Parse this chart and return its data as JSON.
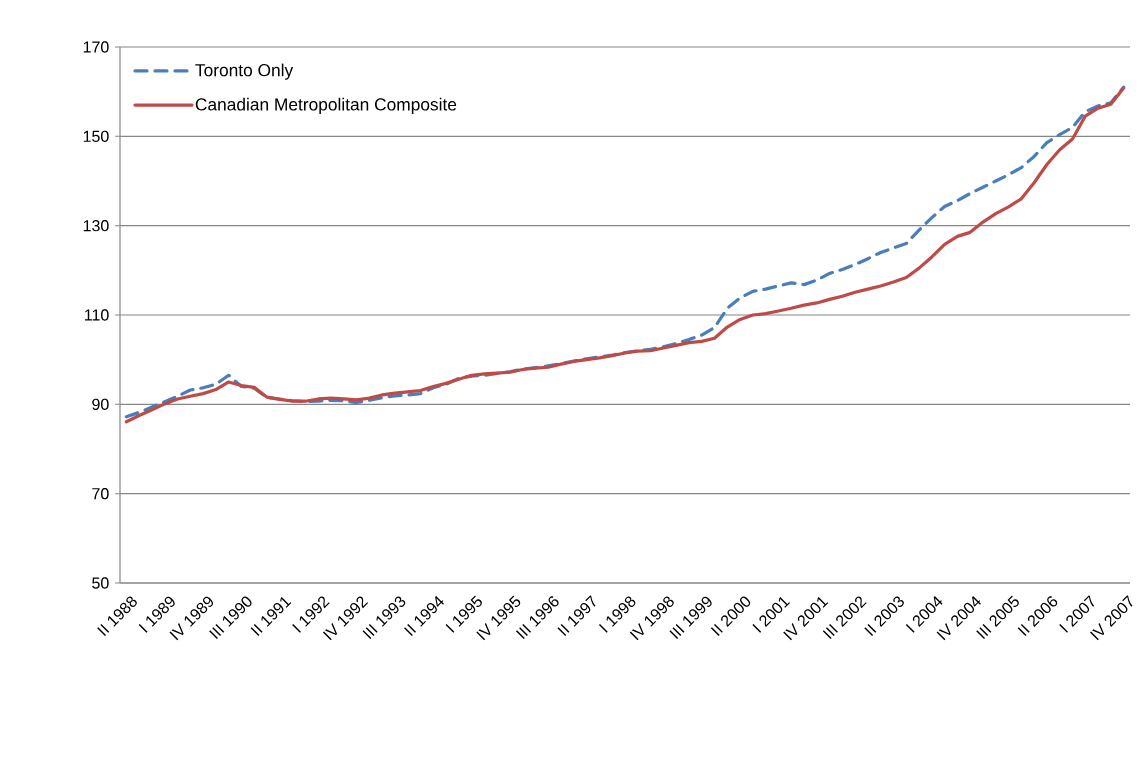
{
  "chart_data": {
    "type": "line",
    "categories": [
      "II 1988",
      null,
      null,
      "I 1989",
      null,
      null,
      "IV 1989",
      null,
      null,
      "III 1990",
      null,
      null,
      "II 1991",
      null,
      null,
      "I 1992",
      null,
      null,
      "IV 1992",
      null,
      null,
      "III 1993",
      null,
      null,
      "II 1994",
      null,
      null,
      "I 1995",
      null,
      null,
      "IV 1995",
      null,
      null,
      "III 1996",
      null,
      null,
      "II 1997",
      null,
      null,
      "I 1998",
      null,
      null,
      "IV 1998",
      null,
      null,
      "III 1999",
      null,
      null,
      "II 2000",
      null,
      null,
      "I 2001",
      null,
      null,
      "IV 2001",
      null,
      null,
      "III 2002",
      null,
      null,
      "II 2003",
      null,
      null,
      "I 2004",
      null,
      null,
      "IV 2004",
      null,
      null,
      "III 2005",
      null,
      null,
      "II 2006",
      null,
      null,
      "I 2007",
      null,
      null,
      "IV 2007"
    ],
    "series": [
      {
        "name": "Toronto Only",
        "color": "#4a7ebb",
        "line_style": "dashed",
        "values": [
          87.2,
          88.2,
          89.4,
          90.6,
          91.8,
          93.2,
          93.7,
          94.5,
          96.5,
          94.0,
          93.6,
          91.5,
          91.2,
          90.8,
          90.6,
          90.7,
          90.9,
          90.8,
          90.4,
          90.9,
          91.5,
          91.9,
          92.1,
          92.4,
          93.7,
          94.5,
          95.8,
          96.3,
          96.5,
          96.9,
          97.3,
          97.9,
          98.2,
          98.6,
          99.1,
          99.7,
          100.2,
          100.6,
          101.0,
          101.6,
          102.0,
          102.3,
          102.9,
          103.6,
          104.5,
          105.5,
          107.2,
          111.5,
          113.8,
          115.3,
          115.8,
          116.5,
          117.2,
          116.8,
          117.8,
          119.3,
          120.2,
          121.3,
          122.6,
          124.0,
          125.0,
          126.0,
          129.0,
          131.8,
          134.3,
          135.6,
          137.2,
          138.6,
          140.0,
          141.4,
          143.0,
          145.5,
          148.6,
          150.4,
          152.0,
          155.5,
          156.8,
          157.5,
          161.0
        ]
      },
      {
        "name": "Canadian Metropolitan Composite",
        "color": "#be4b48",
        "line_style": "solid",
        "values": [
          86.1,
          87.5,
          88.8,
          90.1,
          91.2,
          91.8,
          92.4,
          93.3,
          95.0,
          94.2,
          93.8,
          91.6,
          91.1,
          90.7,
          90.7,
          91.2,
          91.4,
          91.2,
          91.0,
          91.4,
          92.1,
          92.5,
          92.8,
          93.1,
          94.0,
          94.7,
          95.6,
          96.5,
          96.8,
          97.0,
          97.2,
          97.8,
          98.1,
          98.3,
          99.0,
          99.6,
          100.0,
          100.4,
          100.9,
          101.5,
          101.9,
          102.0,
          102.6,
          103.2,
          103.8,
          104.1,
          104.8,
          107.3,
          109.0,
          110.0,
          110.3,
          110.9,
          111.5,
          112.2,
          112.7,
          113.5,
          114.2,
          115.1,
          115.8,
          116.5,
          117.4,
          118.4,
          120.5,
          123.0,
          125.8,
          127.6,
          128.5,
          130.8,
          132.7,
          134.2,
          136.0,
          139.6,
          143.7,
          147.0,
          149.4,
          154.5,
          156.3,
          157.2,
          160.8
        ]
      }
    ],
    "ylim": [
      50,
      170
    ],
    "yticks": [
      50,
      70,
      90,
      110,
      130,
      150,
      170
    ],
    "grid": "y",
    "legend": "top left"
  }
}
